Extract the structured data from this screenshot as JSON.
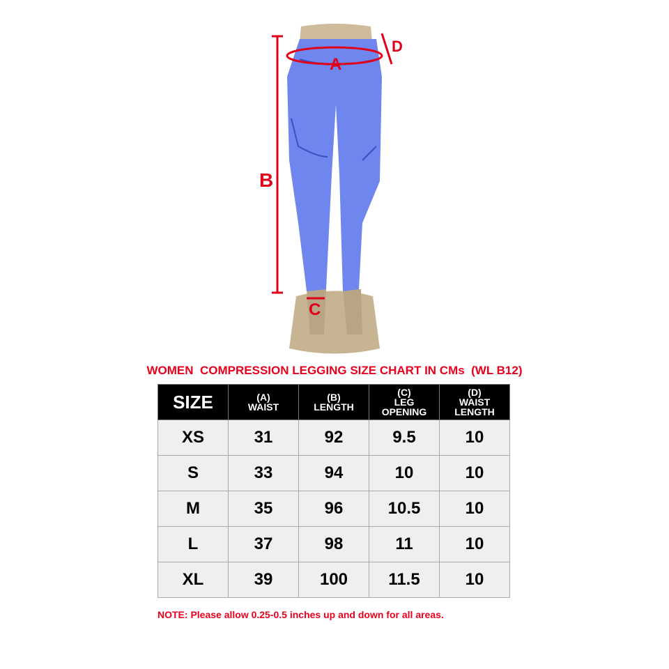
{
  "product_labels": {
    "a": "A",
    "b": "B",
    "c": "C",
    "d": "D"
  },
  "title": "WOMEN  COMPRESSION LEGGING SIZE CHART IN CMs  (WL B12)",
  "table": {
    "headers": [
      {
        "line1": "SIZE",
        "line2": ""
      },
      {
        "line1": "(A)",
        "line2": "WAIST"
      },
      {
        "line1": "(B)",
        "line2": "LENGTH"
      },
      {
        "line1": "(C)",
        "line2": "LEG OPENING"
      },
      {
        "line1": "(D)",
        "line2": "WAIST LENGTH"
      }
    ],
    "rows": [
      [
        "XS",
        "31",
        "92",
        "9.5",
        "10"
      ],
      [
        "S",
        "33",
        "94",
        "10",
        "10"
      ],
      [
        "M",
        "35",
        "96",
        "10.5",
        "10"
      ],
      [
        "L",
        "37",
        "98",
        "11",
        "10"
      ],
      [
        "XL",
        "39",
        "100",
        "11.5",
        "10"
      ]
    ]
  },
  "note": "NOTE: Please allow 0.25-0.5 inches up and down for all areas.",
  "colors": {
    "legging": "#6f86ee",
    "accent": "#e8001c",
    "header_bg": "#000000",
    "cell_bg": "#efefef"
  }
}
